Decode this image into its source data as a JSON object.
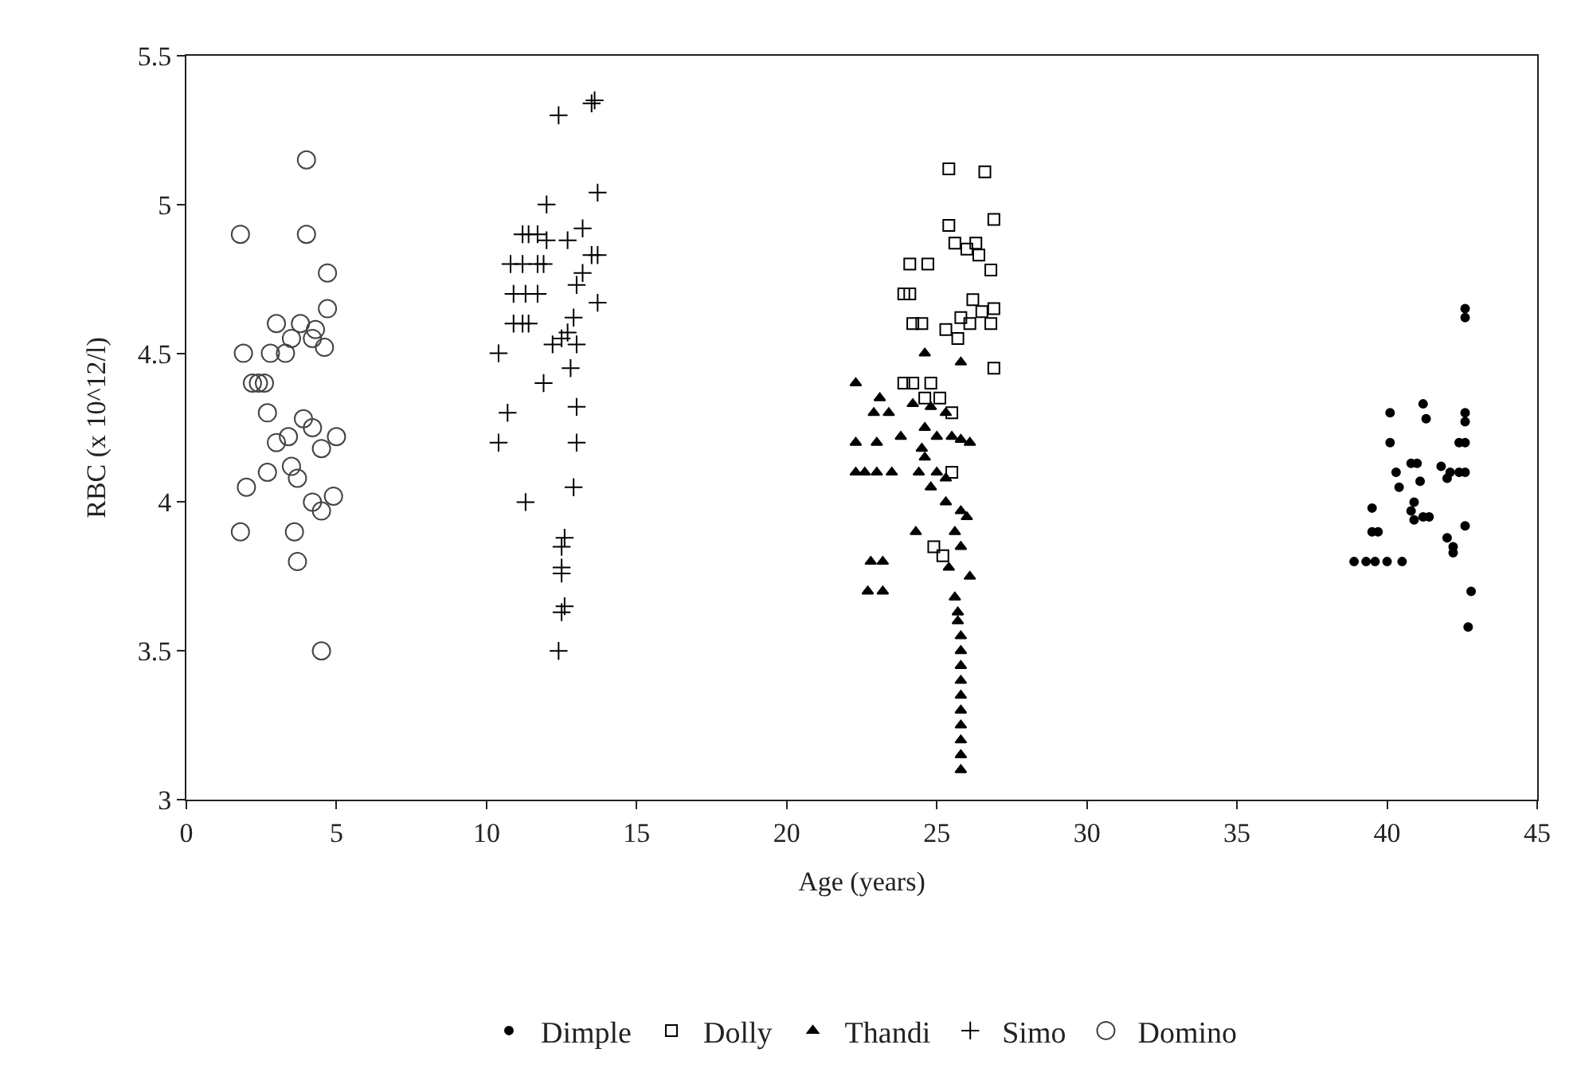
{
  "chart_data": {
    "type": "scatter",
    "xlabel": "Age (years)",
    "ylabel": "RBC (x 10^12/l)",
    "xlim": [
      0,
      45
    ],
    "xticks": [
      0,
      5,
      10,
      15,
      20,
      25,
      30,
      35,
      40,
      45
    ],
    "ylim": [
      3,
      5.5
    ],
    "yticks": [
      3,
      3.5,
      4,
      4.5,
      5,
      5.5
    ],
    "legend": "bottom",
    "series": [
      {
        "name": "Dimple",
        "color": "#000000",
        "marker": "dot",
        "x": [
          42.6,
          42.6,
          40.1,
          41.2,
          41.3,
          42.6,
          42.6,
          42.6,
          40.1,
          42.4,
          40.3,
          40.8,
          41,
          41.8,
          42.1,
          42.4,
          42.6,
          42,
          41.1,
          40.4,
          40.9,
          39.5,
          40.8,
          41.2,
          41.4,
          40.9,
          42.6,
          39.5,
          39.7,
          42,
          42.2,
          42.2,
          38.9,
          39.3,
          39.6,
          40,
          40.5,
          42.8,
          42.7
        ],
        "values": [
          4.65,
          4.62,
          4.3,
          4.33,
          4.28,
          4.3,
          4.27,
          4.2,
          4.2,
          4.2,
          4.1,
          4.13,
          4.13,
          4.12,
          4.1,
          4.1,
          4.1,
          4.08,
          4.07,
          4.05,
          4,
          3.98,
          3.97,
          3.95,
          3.95,
          3.94,
          3.92,
          3.9,
          3.9,
          3.88,
          3.85,
          3.83,
          3.8,
          3.8,
          3.8,
          3.8,
          3.8,
          3.7,
          3.58
        ]
      },
      {
        "name": "Dolly",
        "color": "#000000",
        "marker": "square",
        "x": [
          25.4,
          26.6,
          25.4,
          26.9,
          25.6,
          26,
          26.3,
          26.4,
          24.1,
          24.7,
          26.8,
          23.9,
          24.1,
          26.2,
          26.5,
          26.9,
          25.8,
          26.1,
          26.8,
          24.2,
          24.5,
          25.3,
          25.7,
          26.9,
          23.9,
          24.2,
          24.8,
          24.6,
          25.1,
          25.5,
          25.5,
          24.9,
          25.2
        ],
        "values": [
          5.12,
          5.11,
          4.93,
          4.95,
          4.87,
          4.85,
          4.87,
          4.83,
          4.8,
          4.8,
          4.78,
          4.7,
          4.7,
          4.68,
          4.64,
          4.65,
          4.62,
          4.6,
          4.6,
          4.6,
          4.6,
          4.58,
          4.55,
          4.45,
          4.4,
          4.4,
          4.4,
          4.35,
          4.35,
          4.3,
          4.1,
          3.85,
          3.82
        ]
      },
      {
        "name": "Thandi",
        "color": "#000000",
        "marker": "triangle",
        "x": [
          24.6,
          25.8,
          22.3,
          23.1,
          24.2,
          24.8,
          25.3,
          22.9,
          23.4,
          24.6,
          25,
          25.5,
          25.8,
          26.1,
          22.3,
          23,
          23.8,
          24.5,
          24.6,
          22.3,
          22.6,
          23,
          23.5,
          24.4,
          25,
          25.3,
          24.8,
          25.3,
          25.8,
          26,
          24.3,
          25.6,
          25.8,
          23.2,
          22.8,
          25.4,
          26.1,
          25.6,
          22.7,
          23.2,
          25.7,
          25.7,
          25.8,
          25.8,
          25.8,
          25.8,
          25.8,
          25.8,
          25.8,
          25.8,
          25.8,
          25.8
        ],
        "values": [
          4.5,
          4.47,
          4.4,
          4.35,
          4.33,
          4.32,
          4.3,
          4.3,
          4.3,
          4.25,
          4.22,
          4.22,
          4.21,
          4.2,
          4.2,
          4.2,
          4.22,
          4.18,
          4.15,
          4.1,
          4.1,
          4.1,
          4.1,
          4.1,
          4.1,
          4.08,
          4.05,
          4,
          3.97,
          3.95,
          3.9,
          3.9,
          3.85,
          3.8,
          3.8,
          3.78,
          3.75,
          3.68,
          3.7,
          3.7,
          3.63,
          3.6,
          3.55,
          3.5,
          3.45,
          3.4,
          3.35,
          3.3,
          3.25,
          3.2,
          3.15,
          3.1
        ]
      },
      {
        "name": "Simo",
        "color": "#000000",
        "marker": "cross",
        "x": [
          12.4,
          13.6,
          13.5,
          13.7,
          12,
          11.2,
          11.4,
          11.7,
          12,
          12.7,
          13.2,
          10.8,
          11.2,
          11.7,
          11.9,
          13.5,
          13.7,
          13.2,
          13,
          10.9,
          11.3,
          11.7,
          13.7,
          10.9,
          11.2,
          11.4,
          12.9,
          12.7,
          12.5,
          12.2,
          13,
          10.4,
          12.8,
          11.9,
          13,
          10.7,
          13,
          10.4,
          12.9,
          11.3,
          12.6,
          12.5,
          12.5,
          12.5,
          12.6,
          12.5,
          12.4
        ],
        "values": [
          5.3,
          5.35,
          5.34,
          5.04,
          5,
          4.9,
          4.9,
          4.9,
          4.88,
          4.88,
          4.92,
          4.8,
          4.8,
          4.8,
          4.8,
          4.83,
          4.83,
          4.77,
          4.73,
          4.7,
          4.7,
          4.7,
          4.67,
          4.6,
          4.6,
          4.6,
          4.62,
          4.57,
          4.55,
          4.53,
          4.53,
          4.5,
          4.45,
          4.4,
          4.32,
          4.3,
          4.2,
          4.2,
          4.05,
          4,
          3.88,
          3.85,
          3.78,
          3.76,
          3.65,
          3.63,
          3.5
        ]
      },
      {
        "name": "Domino",
        "color": "#444444",
        "marker": "circle",
        "x": [
          1.8,
          4,
          4,
          4.7,
          1.9,
          2.2,
          2.4,
          2.6,
          3,
          2.8,
          3.3,
          3.5,
          3.8,
          4.2,
          4.7,
          4.3,
          4.6,
          2.7,
          3,
          3.4,
          3.9,
          4.2,
          5,
          4.5,
          2.7,
          3.5,
          3.7,
          2,
          3.6,
          1.8,
          4.5,
          4.9,
          4.2,
          3.7,
          4.5
        ],
        "values": [
          4.9,
          5.15,
          4.9,
          4.77,
          4.5,
          4.4,
          4.4,
          4.4,
          4.6,
          4.5,
          4.5,
          4.55,
          4.6,
          4.55,
          4.65,
          4.58,
          4.52,
          4.3,
          4.2,
          4.22,
          4.28,
          4.25,
          4.22,
          4.18,
          4.1,
          4.12,
          4.08,
          4.05,
          3.9,
          3.9,
          3.97,
          4.02,
          4,
          3.8,
          3.5
        ]
      }
    ]
  }
}
